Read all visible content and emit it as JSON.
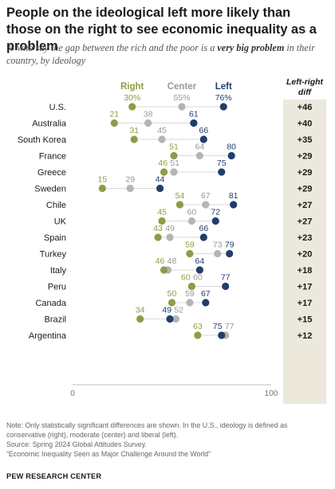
{
  "page": {
    "title": "People on the ideological left more likely than those on the right to see economic inequality as a problem",
    "subtitle_before": "% who say the gap between the rich and the poor is a ",
    "subtitle_emphasis": "very big problem",
    "subtitle_after": " in their country, by ideology",
    "note_lines": [
      "Note: Only statistically significant differences are shown. In the U.S., ideology is defined as",
      "conservative (right), moderate (center) and liberal (left).",
      "Source: Spring 2024 Global Attitudes Survey.",
      "“Economic Inequality Seen as Major Challenge Around the World”"
    ],
    "organization": "PEW RESEARCH CENTER"
  },
  "chart_data": {
    "type": "scatter",
    "subtype": "dot-plot",
    "x_range": [
      0,
      100
    ],
    "x_ticks": [
      0,
      100
    ],
    "grid": false,
    "series": [
      {
        "name": "Right",
        "color": "#8c9d48"
      },
      {
        "name": "Center",
        "color": "#b4b4b4"
      },
      {
        "name": "Left",
        "color": "#203e6b"
      }
    ],
    "diff_header": [
      "Left-right",
      "diff"
    ],
    "countries": [
      {
        "country": "U.S.",
        "right": 30,
        "center": 55,
        "left": 76,
        "diff": "+46",
        "right_label": "30%",
        "center_label": "55%",
        "left_label": "76%"
      },
      {
        "country": "Australia",
        "right": 21,
        "center": 38,
        "left": 61,
        "diff": "+40"
      },
      {
        "country": "South Korea",
        "right": 31,
        "center": 45,
        "left": 66,
        "diff": "+35"
      },
      {
        "country": "France",
        "right": 51,
        "center": 64,
        "left": 80,
        "diff": "+29"
      },
      {
        "country": "Greece",
        "right": 46,
        "center": 51,
        "left": 75,
        "diff": "+29"
      },
      {
        "country": "Sweden",
        "right": 15,
        "center": 29,
        "left": 44,
        "diff": "+29"
      },
      {
        "country": "Chile",
        "right": 54,
        "center": 67,
        "left": 81,
        "diff": "+27"
      },
      {
        "country": "UK",
        "right": 45,
        "center": 60,
        "left": 72,
        "diff": "+27"
      },
      {
        "country": "Spain",
        "right": 43,
        "center": 49,
        "left": 66,
        "diff": "+23"
      },
      {
        "country": "Turkey",
        "right": 59,
        "center": 73,
        "left": 79,
        "diff": "+20"
      },
      {
        "country": "Italy",
        "right": 46,
        "center": 48,
        "left": 64,
        "diff": "+18"
      },
      {
        "country": "Peru",
        "right": 60,
        "center": 60,
        "left": 77,
        "diff": "+17"
      },
      {
        "country": "Canada",
        "right": 50,
        "center": 59,
        "left": 67,
        "diff": "+17"
      },
      {
        "country": "Brazil",
        "right": 34,
        "center": 52,
        "left": 49,
        "diff": "+15"
      },
      {
        "country": "Argentina",
        "right": 63,
        "center": 77,
        "left": 75,
        "diff": "+12"
      }
    ]
  }
}
